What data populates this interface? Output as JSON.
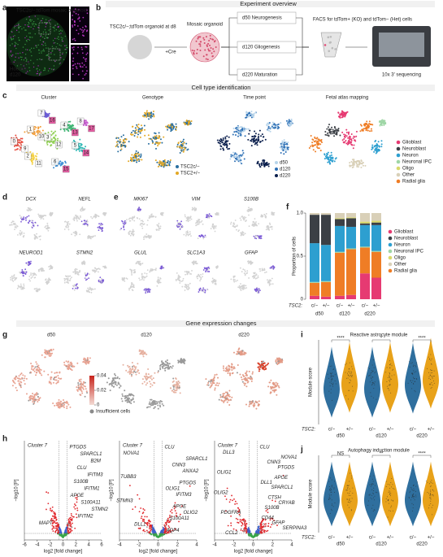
{
  "panels": [
    "a",
    "b",
    "c",
    "d",
    "e",
    "f",
    "g",
    "h",
    "i",
    "j"
  ],
  "sections": [
    "Experiment overview",
    "Cell type identification",
    "Gene expression changes"
  ],
  "a": {
    "title": "TSC2c/−;tdTom mosaic organoid",
    "legend": [
      "tdTomato",
      "Hoechst",
      "d120"
    ]
  },
  "b": {
    "start": "TSC2c/−;tdTom organoid at d8",
    "cre": "+Cre",
    "mosaic": "Mosaic organoid",
    "stages": [
      "d50 Neurogenesis",
      "d120 Gliogenesis",
      "d220 Maturation"
    ],
    "facs": "FACS for tdTom+ (KO) and tdTom− (Het) cells",
    "seq": "10x 3′ sequencing"
  },
  "c": {
    "titles": [
      "Cluster",
      "Genotype",
      "Time point",
      "Fetal atlas mapping"
    ],
    "clusters": [
      "0",
      "1",
      "2",
      "3",
      "4",
      "5",
      "6",
      "7",
      "8",
      "9",
      "10",
      "11",
      "12",
      "13",
      "14",
      "15",
      "16",
      "17"
    ],
    "genotypes": [
      {
        "name": "TSC2c/−",
        "color": "#2a6fa0"
      },
      {
        "name": "TSC2+/−",
        "color": "#e3a825"
      }
    ],
    "timepoints": [
      {
        "name": "d50",
        "color": "#b7d4ea"
      },
      {
        "name": "d120",
        "color": "#2d6fb5"
      },
      {
        "name": "d220",
        "color": "#0b1f4d"
      }
    ],
    "cell_types": [
      {
        "name": "Glioblast",
        "color": "#e63a72"
      },
      {
        "name": "Neuroblast",
        "color": "#3b3f45"
      },
      {
        "name": "Neuron",
        "color": "#2d9fd0"
      },
      {
        "name": "Neuronal IPC",
        "color": "#9fd6a6"
      },
      {
        "name": "Oligo",
        "color": "#d9d96a"
      },
      {
        "name": "Other",
        "color": "#d9d0b8"
      },
      {
        "name": "Radial glia",
        "color": "#ef7d25"
      }
    ]
  },
  "d": {
    "genes": [
      "DCX",
      "NEFL",
      "NEUROD1",
      "STMN2"
    ]
  },
  "e": {
    "genes": [
      "MKI67",
      "VIM",
      "S100B",
      "GLUL",
      "SLC1A3",
      "GFAP"
    ]
  },
  "f": {
    "ylabel": "Proportion of cells",
    "ylim": [
      0,
      1
    ],
    "yticks": [
      0,
      0.5,
      {
        "value": 1,
        "label": "1.0"
      }
    ],
    "row_label": "TSC2:",
    "genotypes": [
      "c/−",
      "+/−",
      "c/−",
      "+/−",
      "c/−",
      "+/−"
    ],
    "timepoints": [
      "d50",
      "d120",
      "d220"
    ],
    "series": [
      {
        "name": "Glioblast",
        "color": "#e63a72",
        "values": [
          0.04,
          0.03,
          0.04,
          0.05,
          0.3,
          0.25
        ]
      },
      {
        "name": "Neuroblast",
        "color": "#3b3f45",
        "values": [
          0.33,
          0.35,
          0.08,
          0.1,
          0.02,
          0.03
        ]
      },
      {
        "name": "Neuron",
        "color": "#2d9fd0",
        "values": [
          0.45,
          0.42,
          0.3,
          0.25,
          0.25,
          0.3
        ]
      },
      {
        "name": "Neuronal IPC",
        "color": "#9fd6a6",
        "values": [
          0.01,
          0.01,
          0.01,
          0.01,
          0.01,
          0.01
        ]
      },
      {
        "name": "Oligo",
        "color": "#d9d96a",
        "values": [
          0,
          0,
          0.01,
          0.01,
          0.02,
          0.02
        ]
      },
      {
        "name": "Other",
        "color": "#d9d0b8",
        "values": [
          0.02,
          0.02,
          0.06,
          0.05,
          0.1,
          0.09
        ]
      },
      {
        "name": "Radial glia",
        "color": "#ef7d25",
        "values": [
          0.15,
          0.17,
          0.5,
          0.53,
          0.3,
          0.3
        ]
      }
    ]
  },
  "g": {
    "titles": [
      "d50",
      "d120",
      "d220"
    ],
    "colorbar_ticks": [
      0,
      0.02,
      0.04
    ],
    "insufficient": "Insufficient cells"
  },
  "h": {
    "xlabel": "log2 [fold change]",
    "ylabel": "−log10 [P]",
    "plots": [
      {
        "cluster": "Cluster 7",
        "xticks": [
          -6,
          -4,
          -2,
          0,
          2,
          4,
          6
        ],
        "genes": [
          "PTGDS",
          "SPARCL1",
          "B2M",
          "CLU",
          "IFITM3",
          "S100B",
          "IFITM1",
          "APOE",
          "S100A11",
          "STMN2",
          "IFITM2",
          "MAPT"
        ]
      },
      {
        "cluster": "Cluster 7",
        "xticks": [
          -4,
          -2,
          0,
          2,
          4
        ],
        "genes": [
          "CLU",
          "NOVA1",
          "SPARCL1",
          "CNN3",
          "ANXA2",
          "TUBB3",
          "PTGDS",
          "OLIG1",
          "IFITM3",
          "STMN3",
          "APOE",
          "OLIG2",
          "S100A11",
          "DLL1",
          "AQP4"
        ]
      },
      {
        "cluster": "Cluster 7",
        "xticks": [
          -4,
          -2,
          0,
          2,
          4
        ],
        "genes": [
          "CLU",
          "DLL3",
          "NOVA1",
          "CNN3",
          "PTGDS",
          "OLIG1",
          "APOE",
          "DLL1",
          "SPARCL1",
          "OLIG2",
          "CTSH",
          "CRYAB",
          "S100B",
          "PDGFRA",
          "CD44",
          "GFAP",
          "SERPINA3",
          "CCL2"
        ]
      }
    ]
  },
  "i": {
    "title": "Reactive astrocyte module",
    "ylabel": "Module score",
    "row_label": "TSC2:",
    "genotypes": [
      "c/−",
      "+/−"
    ],
    "timepoints": [
      "d50",
      "d120",
      "d220"
    ],
    "significance": [
      "****",
      "*",
      "****"
    ]
  },
  "j": {
    "title": "Autophagy induction module",
    "ylabel": "Module score",
    "row_label": "TSC2:",
    "genotypes": [
      "c/−",
      "+/−"
    ],
    "timepoints": [
      "d50",
      "d120",
      "d220"
    ],
    "significance": [
      "NS",
      "**",
      "****"
    ]
  }
}
